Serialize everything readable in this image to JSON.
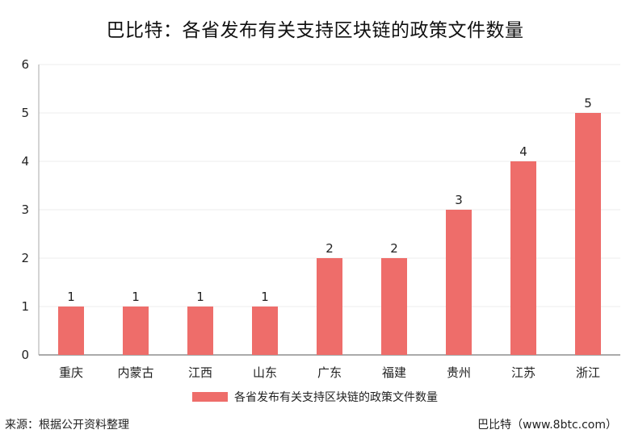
{
  "colors": {
    "bar": "#ee6d6a",
    "axis": "#aaaaaa",
    "grid": "#eeeeee",
    "text": "#222222"
  },
  "chart_data": {
    "type": "bar",
    "title": "巴比特：各省发布有关支持区块链的政策文件数量",
    "xlabel": "",
    "ylabel": "",
    "categories": [
      "重庆",
      "内蒙古",
      "江西",
      "山东",
      "广东",
      "福建",
      "贵州",
      "江苏",
      "浙江"
    ],
    "series": [
      {
        "name": "各省发布有关支持区块链的政策文件数量",
        "values": [
          1,
          1,
          1,
          1,
          2,
          2,
          3,
          4,
          5
        ]
      }
    ],
    "ylim": [
      0,
      6
    ],
    "yticks": [
      "0",
      "1",
      "2",
      "3",
      "4",
      "5",
      "6"
    ],
    "data_labels": true,
    "grid": true,
    "legend_position": "bottom"
  },
  "footer": {
    "source": "来源：根据公开资料整理",
    "credit": "巴比特（www.8btc.com）"
  }
}
